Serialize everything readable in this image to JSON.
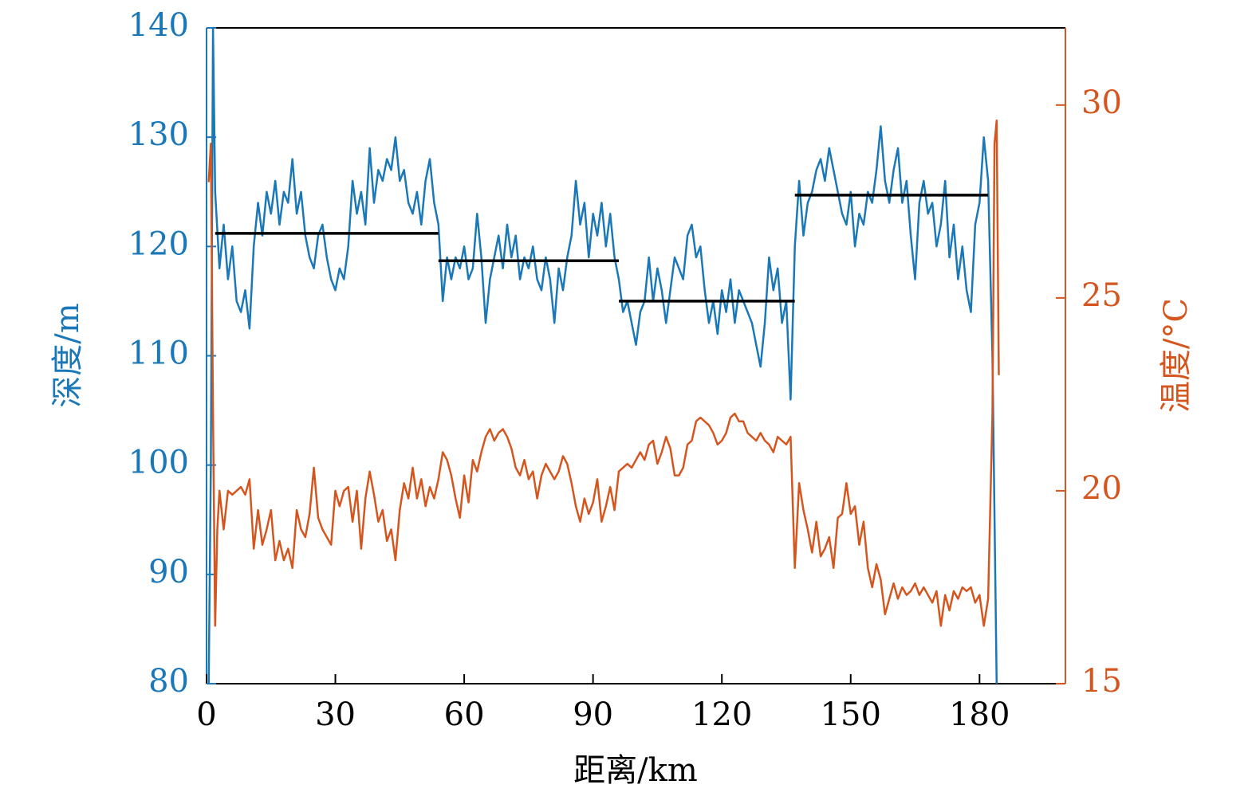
{
  "chart_data": {
    "type": "line",
    "xlabel": "距离/km",
    "ylabel": "深度/m",
    "y2label": "温度/°C",
    "xlim": [
      0,
      200
    ],
    "xticks": [
      0,
      30,
      60,
      90,
      120,
      150,
      180
    ],
    "ylim": [
      80,
      140
    ],
    "yticks": [
      80,
      90,
      100,
      110,
      120,
      130,
      140
    ],
    "y2lim": [
      15,
      32
    ],
    "y2ticks": [
      15,
      20,
      25,
      30
    ],
    "ycolor": "#1a78b8",
    "y2color": "#d4561e",
    "series": [
      {
        "color": "#1a78b8",
        "x": [
          0.5,
          1,
          1.5,
          2,
          3,
          4,
          5,
          6,
          7,
          8,
          9,
          10,
          11,
          12,
          13,
          14,
          15,
          16,
          17,
          18,
          19,
          20,
          21,
          22,
          23,
          24,
          25,
          26,
          27,
          28,
          29,
          30,
          31,
          32,
          33,
          34,
          35,
          36,
          37,
          38,
          39,
          40,
          41,
          42,
          43,
          44,
          45,
          46,
          47,
          48,
          49,
          50,
          51,
          52,
          53,
          54,
          55,
          56,
          57,
          58,
          59,
          60,
          61,
          62,
          63,
          64,
          65,
          66,
          67,
          68,
          69,
          70,
          71,
          72,
          73,
          74,
          75,
          76,
          77,
          78,
          79,
          80,
          81,
          82,
          83,
          84,
          85,
          86,
          87,
          88,
          89,
          90,
          91,
          92,
          93,
          94,
          95,
          96,
          97,
          98,
          99,
          100,
          101,
          102,
          103,
          104,
          105,
          106,
          107,
          108,
          109,
          110,
          111,
          112,
          113,
          114,
          115,
          116,
          117,
          118,
          119,
          120,
          121,
          122,
          123,
          124,
          125,
          126,
          127,
          128,
          129,
          130,
          131,
          132,
          133,
          134,
          135,
          136,
          137,
          138,
          139,
          140,
          141,
          142,
          143,
          144,
          145,
          146,
          147,
          148,
          149,
          150,
          151,
          152,
          153,
          154,
          155,
          156,
          157,
          158,
          159,
          160,
          161,
          162,
          163,
          164,
          165,
          166,
          167,
          168,
          169,
          170,
          171,
          172,
          173,
          174,
          175,
          176,
          177,
          178,
          179,
          180,
          181,
          182,
          183,
          184
        ],
        "values": [
          80,
          100,
          140,
          125,
          118,
          122,
          117,
          120,
          115,
          114,
          116,
          112.5,
          120,
          124,
          121,
          125,
          123,
          126,
          122,
          125,
          124,
          128,
          123,
          125,
          121,
          119,
          118,
          121,
          122,
          119,
          117,
          116,
          118,
          117,
          120,
          126,
          123,
          125,
          122,
          129,
          124,
          127,
          126,
          128,
          127,
          130,
          126,
          127,
          124,
          123,
          125,
          122,
          126,
          128,
          124,
          122,
          115,
          119,
          117,
          119,
          118,
          120,
          117,
          118,
          123,
          119,
          113,
          117,
          119,
          121,
          118,
          122,
          119,
          121,
          117,
          119,
          118,
          120,
          117,
          116,
          119,
          117,
          113,
          118,
          116,
          119,
          121,
          126,
          122,
          124,
          119,
          123,
          121,
          124,
          120,
          123,
          119,
          117,
          114,
          115,
          113,
          111,
          114,
          115,
          119,
          115,
          118,
          116,
          113,
          116,
          119,
          118,
          117,
          121,
          122,
          119,
          120,
          116,
          113,
          115,
          112,
          116,
          114,
          117,
          113,
          116,
          115,
          114,
          113,
          111,
          109,
          113,
          119,
          116,
          118,
          113,
          115,
          106,
          120,
          126,
          121,
          124,
          125,
          127,
          128,
          126,
          129,
          127,
          125,
          123,
          122,
          125,
          120,
          123,
          122,
          125,
          124,
          127,
          131,
          126,
          124,
          127,
          129,
          124,
          126,
          121,
          117,
          124,
          126,
          123,
          124,
          120,
          122,
          126,
          119,
          122,
          117,
          120,
          116,
          114,
          122,
          124,
          130,
          126,
          110,
          80
        ]
      },
      {
        "color": "#d4561e",
        "axis": "y2",
        "x": [
          0.5,
          1,
          1.5,
          2,
          2.5,
          3,
          4,
          5,
          6,
          7,
          8,
          9,
          10,
          11,
          12,
          13,
          14,
          15,
          16,
          17,
          18,
          19,
          20,
          21,
          22,
          23,
          24,
          25,
          26,
          27,
          28,
          29,
          30,
          31,
          32,
          33,
          34,
          35,
          36,
          37,
          38,
          39,
          40,
          41,
          42,
          43,
          44,
          45,
          46,
          47,
          48,
          49,
          50,
          51,
          52,
          53,
          54,
          55,
          56,
          57,
          58,
          59,
          60,
          61,
          62,
          63,
          64,
          65,
          66,
          67,
          68,
          69,
          70,
          71,
          72,
          73,
          74,
          75,
          76,
          77,
          78,
          79,
          80,
          81,
          82,
          83,
          84,
          85,
          86,
          87,
          88,
          89,
          90,
          91,
          92,
          93,
          94,
          95,
          96,
          97,
          98,
          99,
          100,
          101,
          102,
          103,
          104,
          105,
          106,
          107,
          108,
          109,
          110,
          111,
          112,
          113,
          114,
          115,
          116,
          117,
          118,
          119,
          120,
          121,
          122,
          123,
          124,
          125,
          126,
          127,
          128,
          129,
          130,
          131,
          132,
          133,
          134,
          135,
          136,
          137,
          138,
          139,
          140,
          141,
          142,
          143,
          144,
          145,
          146,
          147,
          148,
          149,
          150,
          151,
          152,
          153,
          154,
          155,
          156,
          157,
          158,
          159,
          160,
          161,
          162,
          163,
          164,
          165,
          166,
          167,
          168,
          169,
          170,
          171,
          172,
          173,
          174,
          175,
          176,
          177,
          178,
          179,
          180,
          181,
          182,
          183,
          183.5,
          184,
          184.5
        ],
        "values": [
          28,
          29,
          22,
          16.5,
          19,
          20,
          19,
          20,
          19.9,
          20,
          20.1,
          19.9,
          20.3,
          18.5,
          19.5,
          18.6,
          19,
          19.5,
          18.2,
          18.7,
          18.2,
          18.5,
          18,
          19.5,
          19,
          18.8,
          19.4,
          20.6,
          19.3,
          19,
          18.8,
          18.6,
          20,
          19.6,
          20,
          20.1,
          19.2,
          20,
          18.5,
          19.8,
          20.5,
          19.9,
          19.2,
          19.5,
          18.7,
          19,
          18.2,
          19.5,
          20.2,
          19.8,
          20.6,
          19.8,
          20.3,
          19.6,
          20.1,
          19.8,
          20.3,
          21,
          20.8,
          20.4,
          19.8,
          19.3,
          20.4,
          19.7,
          20.8,
          20.5,
          21,
          21.4,
          21.6,
          21.3,
          21.5,
          21.6,
          21.4,
          21.1,
          20.6,
          20.4,
          20.8,
          20.3,
          20.5,
          19.8,
          20.4,
          20.7,
          20.5,
          20.3,
          20.5,
          20.9,
          20.7,
          20.2,
          19.6,
          19.2,
          19.8,
          19.4,
          19.7,
          20.3,
          19.2,
          19.6,
          20.1,
          19.5,
          20.5,
          20.6,
          20.7,
          20.6,
          20.8,
          21,
          20.8,
          21.2,
          21.3,
          20.7,
          21,
          21.4,
          21.1,
          20.4,
          20.4,
          20.6,
          21.2,
          21.3,
          21.8,
          21.9,
          21.8,
          21.7,
          21.5,
          21.2,
          21.3,
          21.5,
          21.9,
          22,
          21.8,
          21.8,
          21.5,
          21.4,
          21.3,
          21.5,
          21.3,
          21.2,
          21,
          21.4,
          21.3,
          21.2,
          21.4,
          18,
          20.2,
          19.5,
          19,
          18.4,
          19.2,
          18.3,
          18.5,
          18.8,
          18,
          19.3,
          19.4,
          20.2,
          19.4,
          19.6,
          18.6,
          19.2,
          18,
          17.5,
          18.1,
          17.7,
          16.8,
          17.2,
          17.6,
          17.2,
          17.5,
          17.3,
          17.4,
          17.6,
          17.3,
          17.5,
          17.3,
          17.1,
          17.4,
          16.5,
          17.3,
          16.9,
          17.4,
          17.2,
          17.5,
          17.4,
          17.5,
          17.1,
          17.3,
          16.5,
          17.2,
          22,
          29,
          29.6,
          23
        ]
      },
      {
        "color": "#000000",
        "x": [
          2,
          54,
          54,
          54,
          96,
          96,
          96,
          137,
          137,
          137,
          182
        ],
        "values": [
          121.2,
          121.2,
          null,
          118.7,
          118.7,
          null,
          115,
          115,
          null,
          124.7,
          124.7
        ]
      }
    ]
  }
}
